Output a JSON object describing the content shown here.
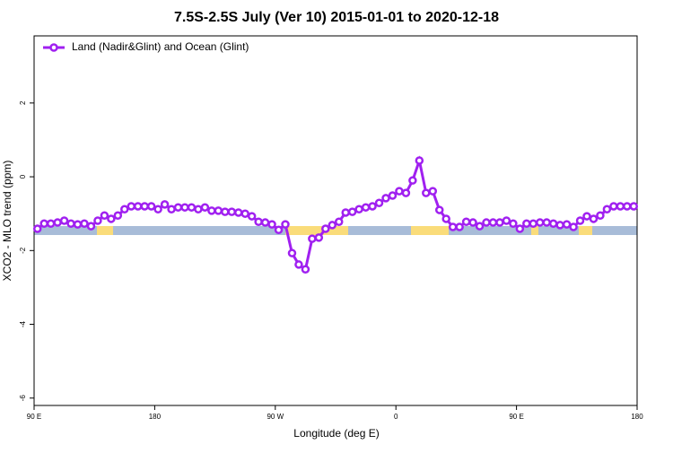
{
  "chart_data": {
    "type": "line",
    "title": "7.5S-2.5S July (Ver 10)   2015-01-01 to 2020-12-18",
    "x_label": "Longitude (deg E)",
    "y_label": "XCO2 - MLO trend (ppm)",
    "xlim": [
      90,
      540
    ],
    "ylim": [
      -6.2,
      3.82
    ],
    "xticks": [
      {
        "value": 90,
        "label": "90 E"
      },
      180,
      {
        "value": 270,
        "label": "90 W"
      },
      {
        "value": 360,
        "label": "0"
      },
      {
        "value": 450,
        "label": "90 E"
      },
      {
        "value": 540,
        "label": "180"
      }
    ],
    "yticks": [
      -6,
      -4,
      -2,
      0,
      2
    ],
    "grid": false,
    "legend": "top-left",
    "x": [
      92.5,
      97.5,
      102.5,
      107.5,
      112.5,
      117.5,
      122.5,
      127.5,
      132.5,
      137.5,
      142.5,
      147.5,
      152.5,
      157.5,
      162.5,
      167.5,
      172.5,
      177.5,
      182.5,
      187.5,
      192.5,
      197.5,
      202.5,
      207.5,
      212.5,
      217.5,
      222.5,
      227.5,
      232.5,
      237.5,
      242.5,
      247.5,
      252.5,
      257.5,
      262.5,
      267.5,
      272.5,
      277.5,
      282.5,
      287.5,
      292.5,
      297.5,
      302.5,
      307.5,
      312.5,
      317.5,
      322.5,
      327.5,
      332.5,
      337.5,
      342.5,
      347.5,
      352.5,
      357.5,
      362.5,
      367.5,
      372.5,
      377.5,
      382.5,
      387.5,
      392.5,
      397.5,
      402.5,
      407.5,
      412.5,
      417.5,
      422.5,
      427.5,
      432.5,
      437.5,
      442.5,
      447.5,
      452.5,
      457.5,
      462.5,
      467.5,
      472.5,
      477.5,
      482.5,
      487.5,
      492.5,
      497.5,
      502.5,
      507.5,
      512.5,
      517.5,
      522.5,
      527.5,
      532.5,
      537.5
    ],
    "series": [
      {
        "name": "Land (Nadir&Glint) and Ocean (Glint)",
        "color": "#a020f0",
        "values": [
          -1.41,
          -1.27,
          -1.27,
          -1.24,
          -1.19,
          -1.27,
          -1.29,
          -1.27,
          -1.34,
          -1.19,
          -1.05,
          -1.14,
          -1.05,
          -0.88,
          -0.8,
          -0.8,
          -0.8,
          -0.8,
          -0.88,
          -0.75,
          -0.88,
          -0.83,
          -0.83,
          -0.83,
          -0.88,
          -0.83,
          -0.92,
          -0.92,
          -0.95,
          -0.95,
          -0.97,
          -1.0,
          -1.07,
          -1.22,
          -1.24,
          -1.29,
          -1.44,
          -1.29,
          -2.07,
          -2.38,
          -2.51,
          -1.68,
          -1.65,
          -1.41,
          -1.31,
          -1.22,
          -0.97,
          -0.95,
          -0.88,
          -0.83,
          -0.8,
          -0.71,
          -0.58,
          -0.51,
          -0.39,
          -0.44,
          -0.1,
          0.44,
          -0.44,
          -0.39,
          -0.9,
          -1.14,
          -1.36,
          -1.36,
          -1.22,
          -1.24,
          -1.34,
          -1.24,
          -1.24,
          -1.24,
          -1.19,
          -1.27,
          -1.41,
          -1.27,
          -1.27,
          -1.24,
          -1.24,
          -1.27,
          -1.31,
          -1.29,
          -1.36,
          -1.19,
          -1.07,
          -1.14,
          -1.05,
          -0.88,
          -0.8,
          -0.8,
          -0.8,
          -0.8
        ]
      }
    ]
  }
}
